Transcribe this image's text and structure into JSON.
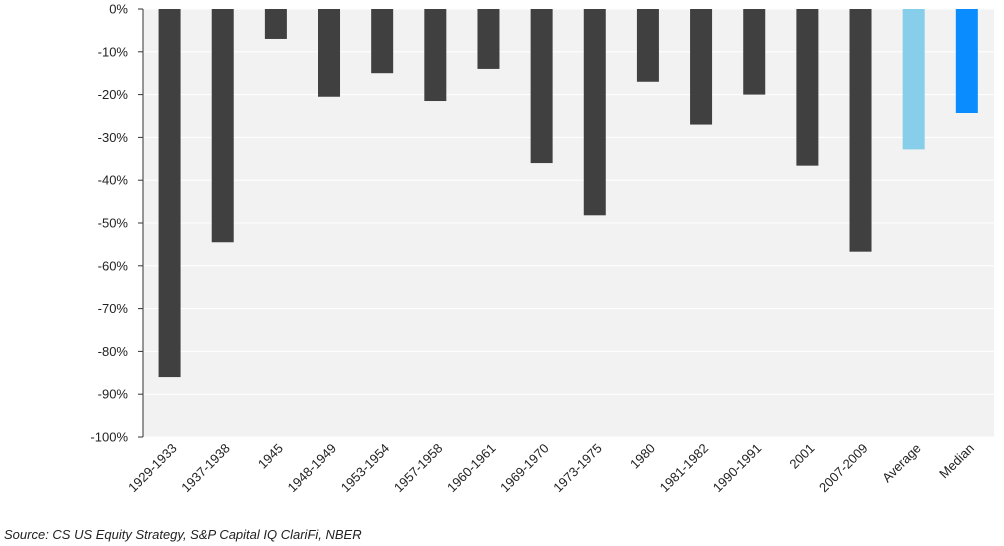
{
  "chart_data": {
    "type": "bar",
    "categories": [
      "1929-1933",
      "1937-1938",
      "1945",
      "1948-1949",
      "1953-1954",
      "1957-1958",
      "1960-1961",
      "1969-1970",
      "1973-1975",
      "1980",
      "1981-1982",
      "1990-1991",
      "2001",
      "2007-2009",
      "Average",
      "Median"
    ],
    "values": [
      -86,
      -54.5,
      -7,
      -20.5,
      -15,
      -21.5,
      -14,
      -36,
      -48.2,
      -17,
      -27,
      -20,
      -36.6,
      -56.7,
      -32.8,
      -24.3
    ],
    "bar_colors": [
      "#404040",
      "#404040",
      "#404040",
      "#404040",
      "#404040",
      "#404040",
      "#404040",
      "#404040",
      "#404040",
      "#404040",
      "#404040",
      "#404040",
      "#404040",
      "#404040",
      "#87ceeb",
      "#0a8cff"
    ],
    "ylim": [
      -100,
      0
    ],
    "yticks": [
      0,
      -10,
      -20,
      -30,
      -40,
      -50,
      -60,
      -70,
      -80,
      -90,
      -100
    ],
    "ytick_labels": [
      "0%",
      "-10%",
      "-20%",
      "-30%",
      "-40%",
      "-50%",
      "-60%",
      "-70%",
      "-80%",
      "-90%",
      "-100%"
    ],
    "grid": true,
    "plot_background": "#f2f2f2",
    "gridline_color": "#ffffff",
    "title": "",
    "xlabel": "",
    "ylabel": ""
  },
  "source": "Source: CS US Equity Strategy, S&P Capital IQ ClariFi, NBER"
}
